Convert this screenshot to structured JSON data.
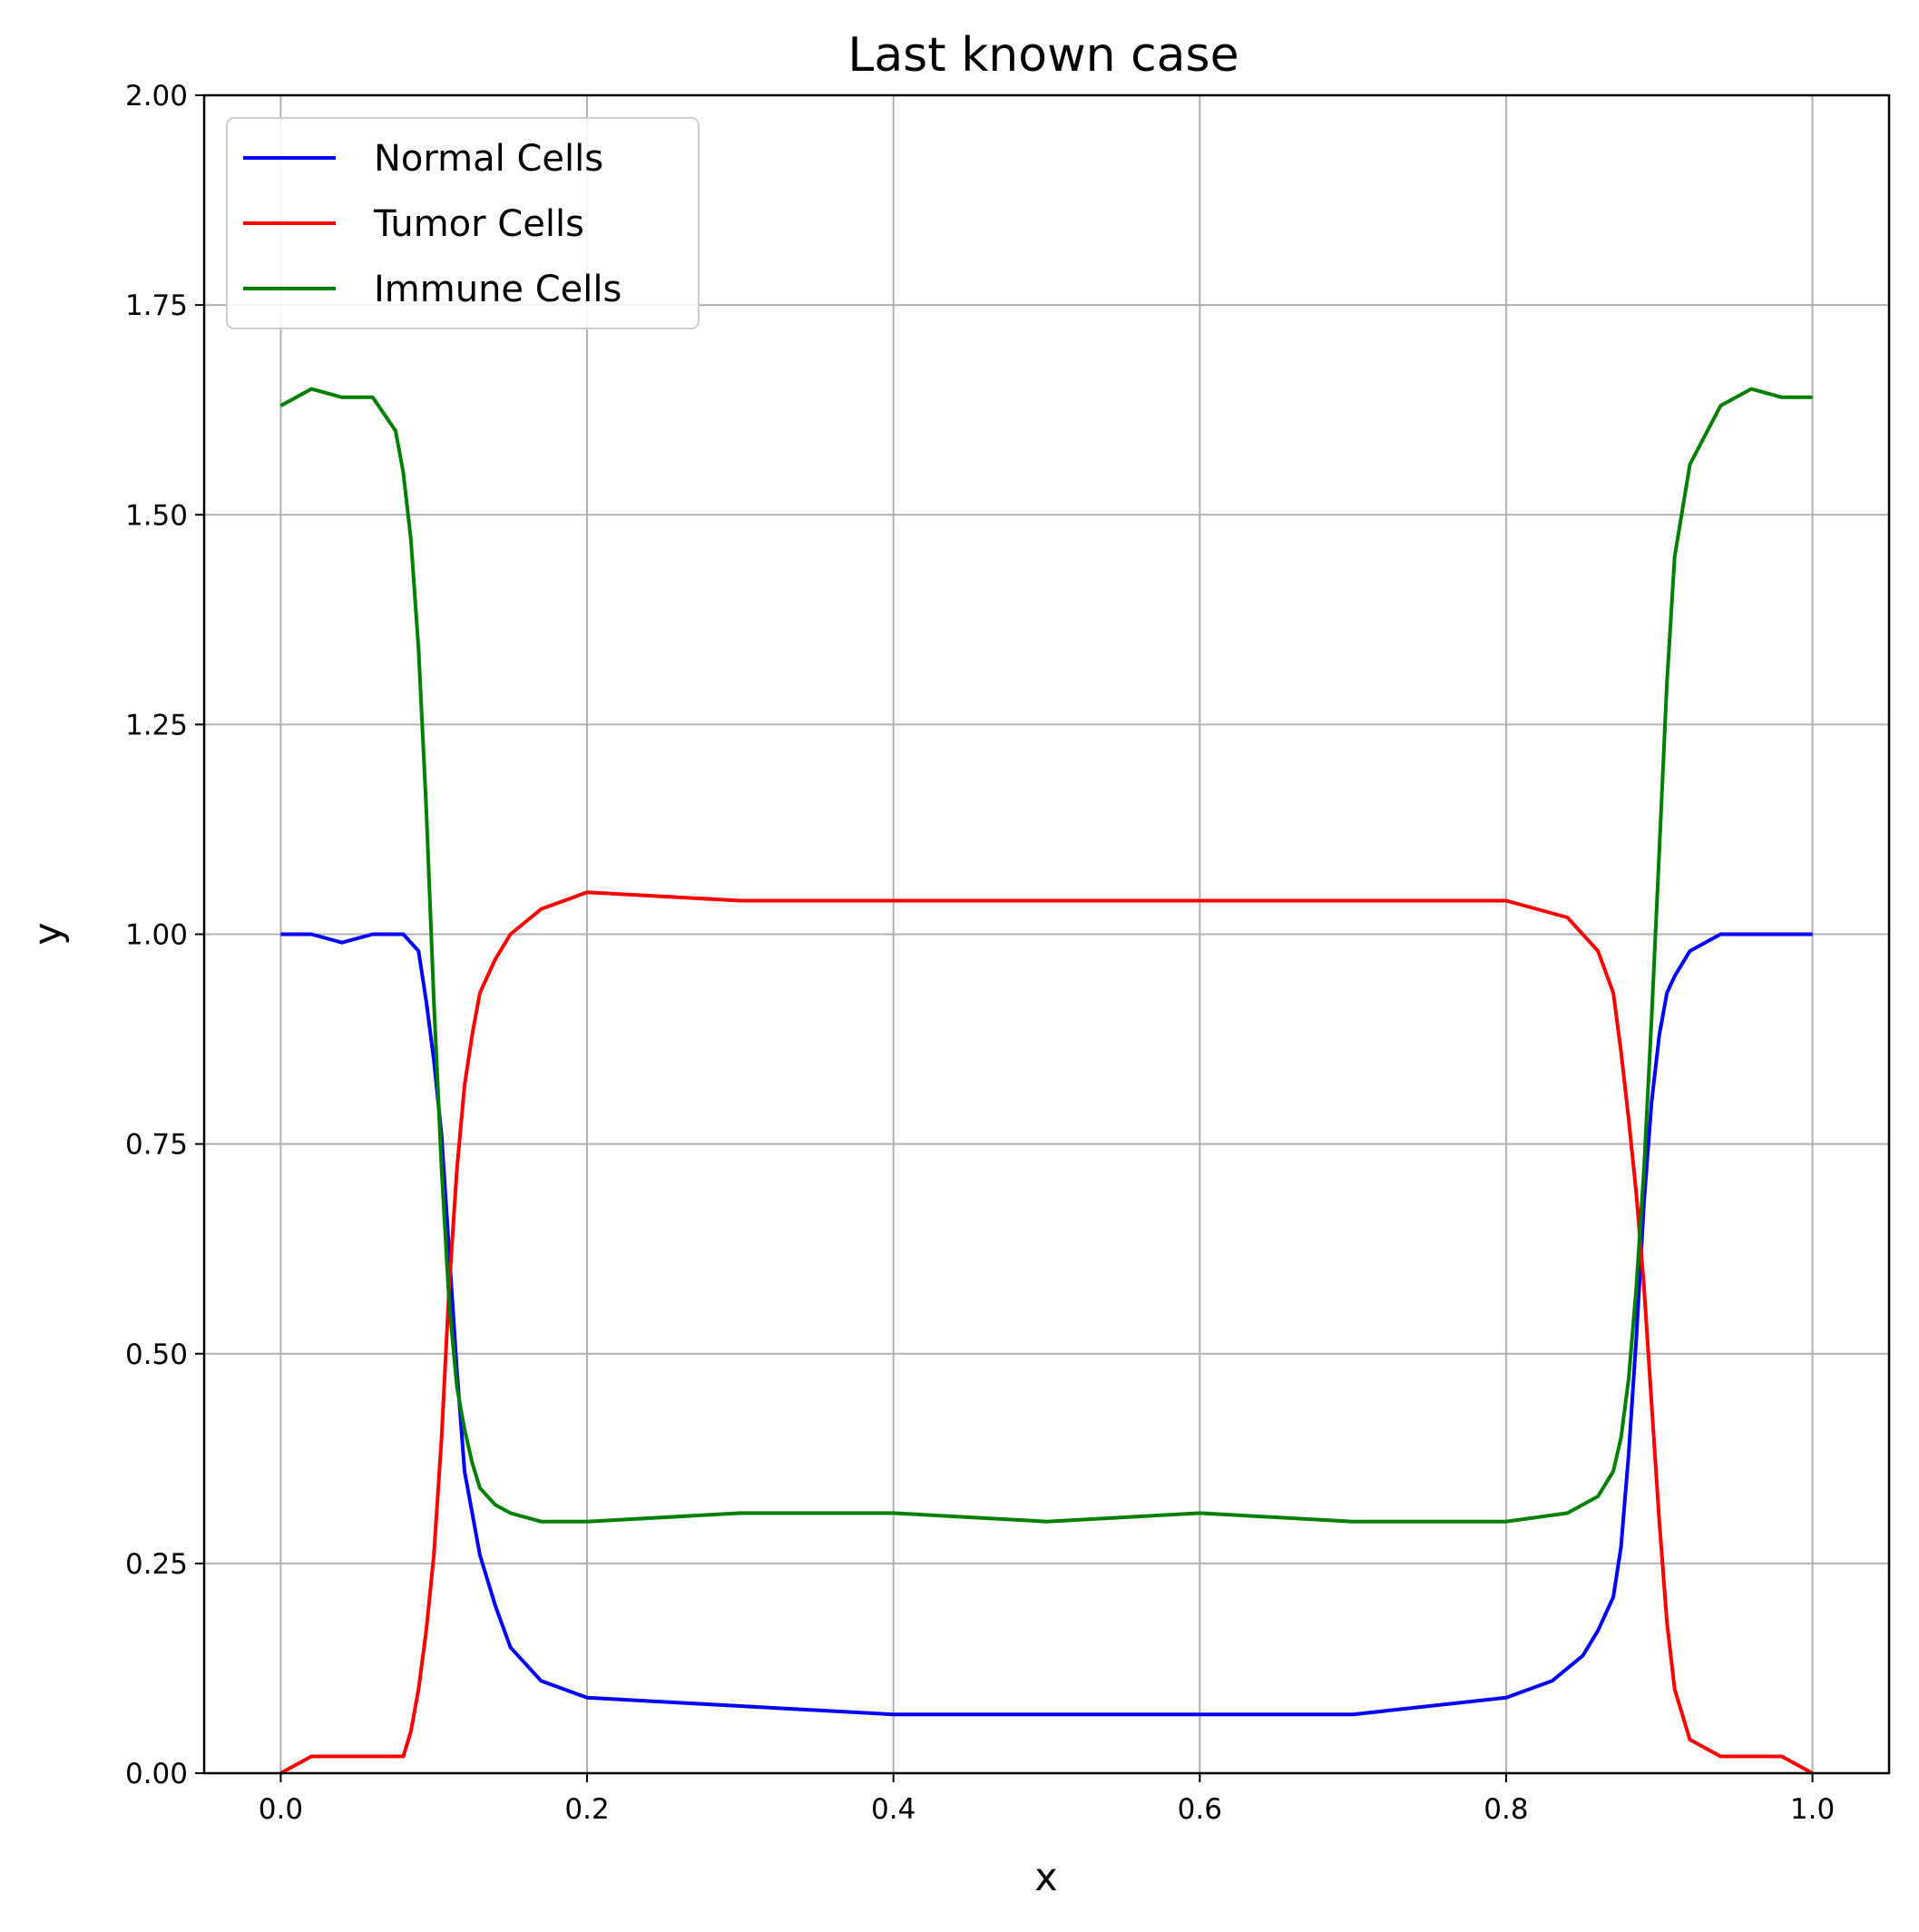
{
  "chart_data": {
    "type": "line",
    "title": "Last known case",
    "xlabel": "x",
    "ylabel": "y",
    "xlim": [
      -0.05,
      1.05
    ],
    "ylim": [
      0,
      2
    ],
    "x_ticks": [
      "0.0",
      "0.2",
      "0.4",
      "0.6",
      "0.8",
      "1.0"
    ],
    "y_ticks": [
      "0.00",
      "0.25",
      "0.50",
      "0.75",
      "1.00",
      "1.25",
      "1.50",
      "1.75",
      "2.00"
    ],
    "grid": true,
    "legend_position": "upper-left",
    "series": [
      {
        "name": "Normal Cells",
        "color": "#0000ff",
        "x": [
          0.0,
          0.02,
          0.04,
          0.06,
          0.08,
          0.09,
          0.095,
          0.1,
          0.105,
          0.11,
          0.115,
          0.12,
          0.13,
          0.14,
          0.15,
          0.17,
          0.2,
          0.3,
          0.4,
          0.5,
          0.6,
          0.7,
          0.75,
          0.8,
          0.83,
          0.85,
          0.86,
          0.87,
          0.875,
          0.88,
          0.885,
          0.89,
          0.895,
          0.9,
          0.905,
          0.91,
          0.92,
          0.94,
          0.96,
          0.98,
          1.0
        ],
        "y": [
          1.0,
          1.0,
          0.99,
          1.0,
          1.0,
          0.98,
          0.92,
          0.85,
          0.76,
          0.62,
          0.48,
          0.36,
          0.26,
          0.2,
          0.15,
          0.11,
          0.09,
          0.08,
          0.07,
          0.07,
          0.07,
          0.07,
          0.08,
          0.09,
          0.11,
          0.14,
          0.17,
          0.21,
          0.27,
          0.38,
          0.52,
          0.68,
          0.8,
          0.88,
          0.93,
          0.95,
          0.98,
          1.0,
          1.0,
          1.0,
          1.0
        ]
      },
      {
        "name": "Tumor Cells",
        "color": "#ff0000",
        "x": [
          0.0,
          0.02,
          0.04,
          0.06,
          0.08,
          0.085,
          0.09,
          0.095,
          0.1,
          0.105,
          0.11,
          0.115,
          0.12,
          0.125,
          0.13,
          0.14,
          0.15,
          0.17,
          0.2,
          0.3,
          0.4,
          0.5,
          0.6,
          0.7,
          0.8,
          0.84,
          0.86,
          0.87,
          0.875,
          0.88,
          0.885,
          0.89,
          0.895,
          0.9,
          0.905,
          0.91,
          0.92,
          0.94,
          0.96,
          0.98,
          1.0
        ],
        "y": [
          0.0,
          0.02,
          0.02,
          0.02,
          0.02,
          0.05,
          0.1,
          0.17,
          0.26,
          0.4,
          0.58,
          0.72,
          0.82,
          0.88,
          0.93,
          0.97,
          1.0,
          1.03,
          1.05,
          1.04,
          1.04,
          1.04,
          1.04,
          1.04,
          1.04,
          1.02,
          0.98,
          0.93,
          0.86,
          0.78,
          0.69,
          0.58,
          0.44,
          0.3,
          0.18,
          0.1,
          0.04,
          0.02,
          0.02,
          0.02,
          0.0
        ]
      },
      {
        "name": "Immune Cells",
        "color": "#008000",
        "x": [
          0.0,
          0.02,
          0.04,
          0.06,
          0.075,
          0.08,
          0.085,
          0.09,
          0.095,
          0.1,
          0.105,
          0.11,
          0.115,
          0.12,
          0.125,
          0.13,
          0.14,
          0.15,
          0.17,
          0.2,
          0.3,
          0.4,
          0.5,
          0.6,
          0.7,
          0.8,
          0.84,
          0.86,
          0.87,
          0.875,
          0.88,
          0.885,
          0.89,
          0.895,
          0.9,
          0.905,
          0.91,
          0.92,
          0.94,
          0.96,
          0.98,
          1.0
        ],
        "y": [
          1.63,
          1.65,
          1.64,
          1.64,
          1.6,
          1.55,
          1.47,
          1.34,
          1.15,
          0.92,
          0.72,
          0.56,
          0.46,
          0.41,
          0.37,
          0.34,
          0.32,
          0.31,
          0.3,
          0.3,
          0.31,
          0.31,
          0.3,
          0.31,
          0.3,
          0.3,
          0.31,
          0.33,
          0.36,
          0.4,
          0.47,
          0.58,
          0.72,
          0.9,
          1.1,
          1.3,
          1.45,
          1.56,
          1.63,
          1.65,
          1.64,
          1.64
        ]
      }
    ]
  }
}
